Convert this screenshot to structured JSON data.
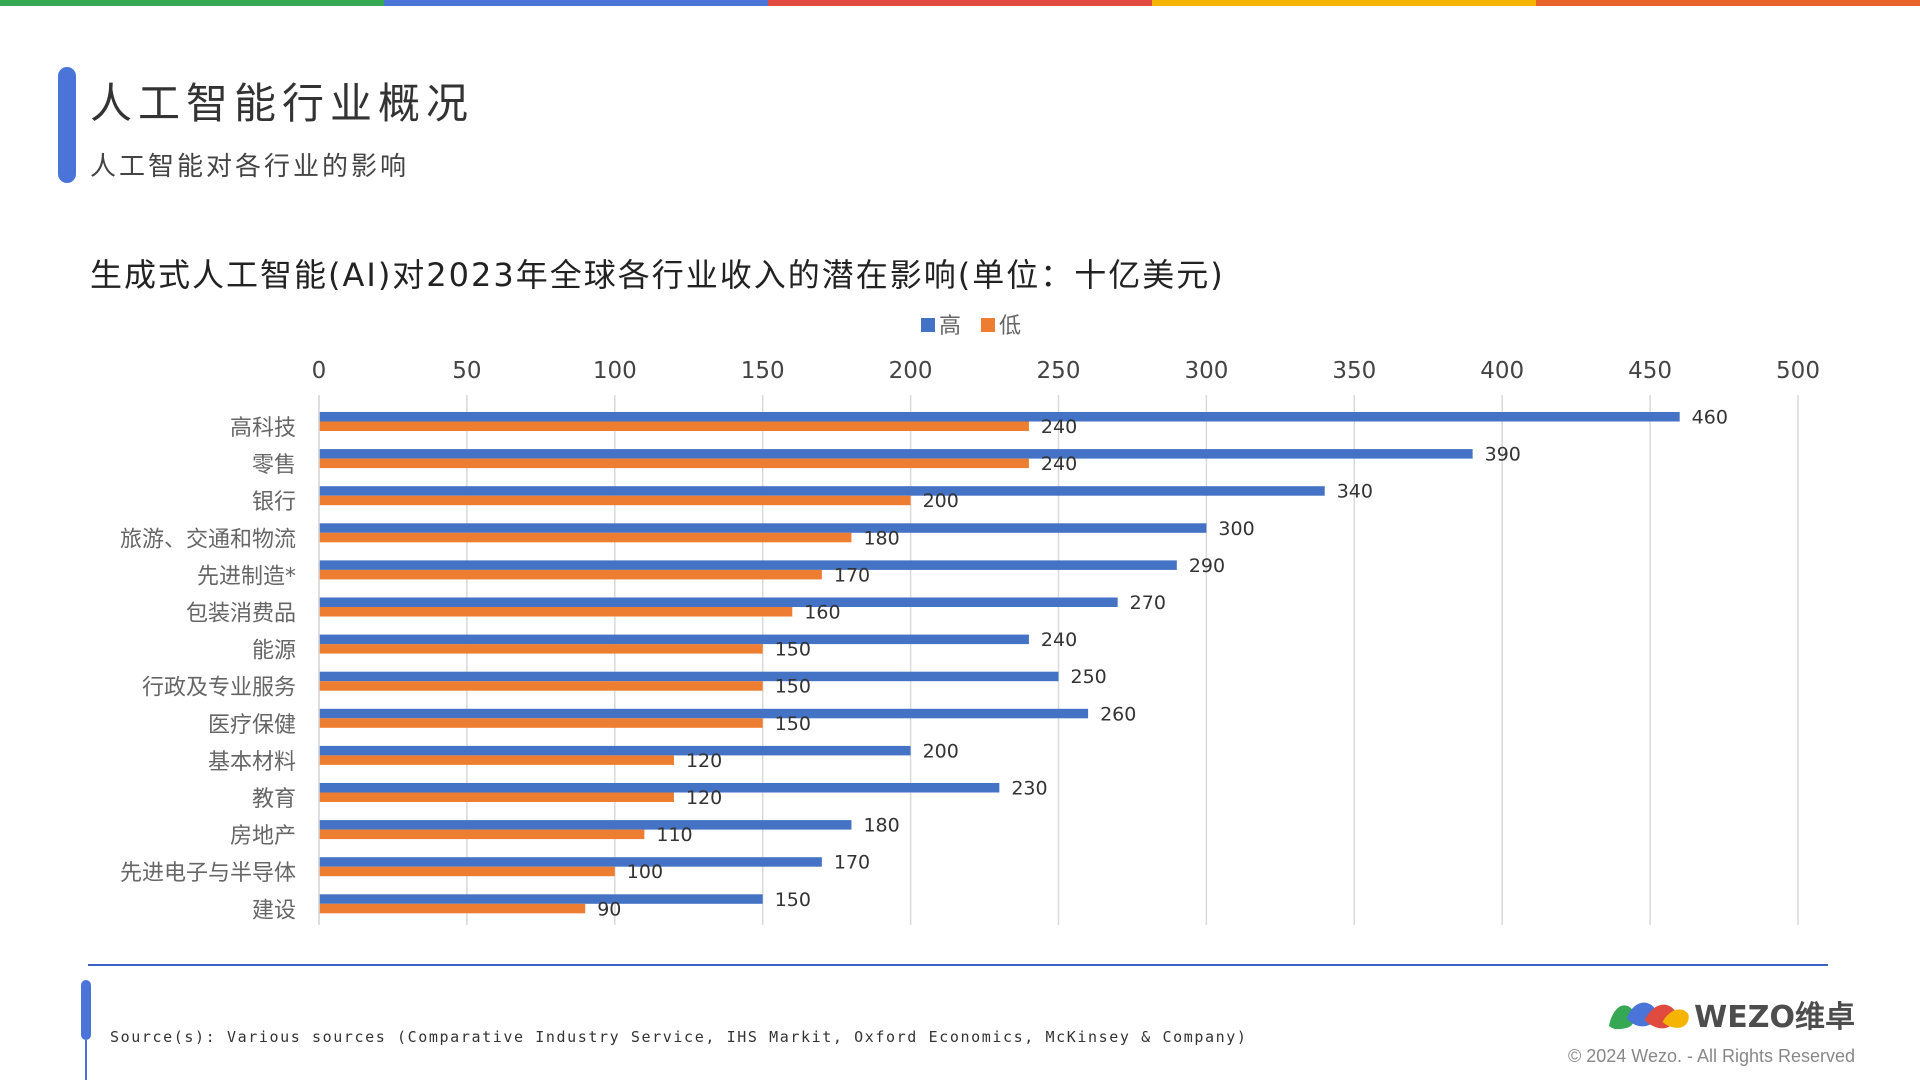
{
  "header": {
    "title": "人工智能行业概况",
    "subtitle": "人工智能对各行业的影响",
    "bar_colors": [
      "#34a853",
      "#4a74d8",
      "#e04a3f",
      "#f4b400",
      "#e8622c"
    ]
  },
  "chart_title": "生成式人工智能(AI)对2023年全球各行业收入的潜在影响(单位：十亿美元)",
  "chart_data": {
    "type": "bar",
    "orientation": "horizontal",
    "categories": [
      "高科技",
      "零售",
      "银行",
      "旅游、交通和物流",
      "先进制造*",
      "包装消费品",
      "能源",
      "行政及专业服务",
      "医疗保健",
      "基本材料",
      "教育",
      "房地产",
      "先进电子与半导体",
      "建设"
    ],
    "series": [
      {
        "name": "高",
        "color": "#4472c4",
        "values": [
          460,
          390,
          340,
          300,
          290,
          270,
          240,
          250,
          260,
          200,
          230,
          180,
          170,
          150
        ]
      },
      {
        "name": "低",
        "color": "#ed7d31",
        "values": [
          240,
          240,
          200,
          180,
          170,
          160,
          150,
          150,
          150,
          120,
          120,
          110,
          100,
          90
        ]
      }
    ],
    "xlim": [
      0,
      500
    ],
    "xticks": [
      "0",
      "50",
      "100",
      "150",
      "200",
      "250",
      "300",
      "350",
      "400",
      "450",
      "500"
    ],
    "x_axis_position": "top",
    "grid": true,
    "legend_position": "top-center",
    "data_labels": true
  },
  "footer": {
    "source": "Source(s): Various sources (Comparative Industry Service, IHS Markit, Oxford Economics, McKinsey & Company)",
    "logo_text": "WEZO维卓",
    "copyright": "© 2024 Wezo. - All Rights Reserved"
  }
}
